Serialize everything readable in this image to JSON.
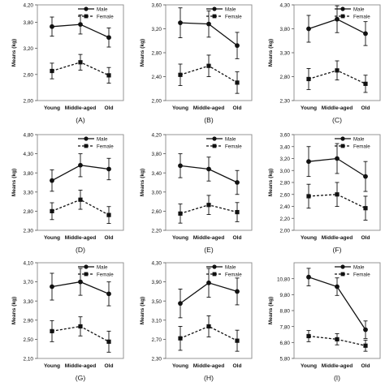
{
  "chart_data": [
    {
      "panel_label": "(A)",
      "type": "line",
      "categories": [
        "Young",
        "Middle-aged",
        "Old"
      ],
      "ylabel": "Means (kg)",
      "yticks": [
        "2,00",
        "2,60",
        "3,20",
        "3,80",
        "4,20"
      ],
      "ylim": [
        2.0,
        4.2
      ],
      "legend": [
        "Male",
        "Female"
      ],
      "series": [
        {
          "name": "Male",
          "values": [
            3.7,
            3.75,
            3.45
          ],
          "errors": [
            0.22,
            0.22,
            0.22
          ]
        },
        {
          "name": "Female",
          "values": [
            2.68,
            2.88,
            2.58
          ],
          "errors": [
            0.18,
            0.18,
            0.18
          ]
        }
      ]
    },
    {
      "panel_label": "(B)",
      "type": "line",
      "categories": [
        "Young",
        "Middle-aged",
        "Old"
      ],
      "ylabel": "Means (kg)",
      "yticks": [
        "2,00",
        "2,40",
        "2,80",
        "3,20",
        "3,60"
      ],
      "ylim": [
        2.0,
        3.6
      ],
      "legend": [
        "Male",
        "Female"
      ],
      "series": [
        {
          "name": "Male",
          "values": [
            3.3,
            3.28,
            2.92
          ],
          "errors": [
            0.25,
            0.22,
            0.22
          ]
        },
        {
          "name": "Female",
          "values": [
            2.43,
            2.58,
            2.3
          ],
          "errors": [
            0.18,
            0.18,
            0.18
          ]
        }
      ]
    },
    {
      "panel_label": "(C)",
      "type": "line",
      "categories": [
        "Young",
        "Middle-aged",
        "Old"
      ],
      "ylabel": "Means (kg)",
      "yticks": [
        "2,30",
        "2,80",
        "3,30",
        "3,80",
        "4,30"
      ],
      "ylim": [
        2.3,
        4.3
      ],
      "legend": [
        "Male",
        "Female"
      ],
      "series": [
        {
          "name": "Male",
          "values": [
            3.8,
            4.0,
            3.7
          ],
          "errors": [
            0.28,
            0.28,
            0.25
          ]
        },
        {
          "name": "Female",
          "values": [
            2.75,
            2.93,
            2.65
          ],
          "errors": [
            0.22,
            0.2,
            0.18
          ]
        }
      ]
    },
    {
      "panel_label": "(D)",
      "type": "line",
      "categories": [
        "Young",
        "Middle-aged",
        "Old"
      ],
      "ylabel": "Means (kg)",
      "yticks": [
        "2,30",
        "2,80",
        "3,30",
        "3,80",
        "4,30",
        "4,80"
      ],
      "ylim": [
        2.3,
        4.8
      ],
      "legend": [
        "Male",
        "Female"
      ],
      "series": [
        {
          "name": "Male",
          "values": [
            3.6,
            4.0,
            3.9
          ],
          "errors": [
            0.28,
            0.3,
            0.28
          ]
        },
        {
          "name": "Female",
          "values": [
            2.8,
            3.1,
            2.7
          ],
          "errors": [
            0.22,
            0.25,
            0.22
          ]
        }
      ]
    },
    {
      "panel_label": "(E)",
      "type": "line",
      "categories": [
        "Young",
        "Middle-aged",
        "Old"
      ],
      "ylabel": "Means (kg)",
      "yticks": [
        "2,20",
        "2,60",
        "3,00",
        "3,40",
        "3,80",
        "4,20"
      ],
      "ylim": [
        2.2,
        4.2
      ],
      "legend": [
        "Male",
        "Female"
      ],
      "series": [
        {
          "name": "Male",
          "values": [
            3.55,
            3.48,
            3.2
          ],
          "errors": [
            0.25,
            0.25,
            0.25
          ]
        },
        {
          "name": "Female",
          "values": [
            2.55,
            2.73,
            2.58
          ],
          "errors": [
            0.2,
            0.2,
            0.2
          ]
        }
      ]
    },
    {
      "panel_label": "(F)",
      "type": "line",
      "categories": [
        "Young",
        "Middle-aged",
        "Old"
      ],
      "ylabel": "Means (kg)",
      "yticks": [
        "2,00",
        "2,20",
        "2,40",
        "2,60",
        "2,80",
        "3,00",
        "3,20",
        "3,40",
        "3,60"
      ],
      "ylim": [
        2.0,
        3.6
      ],
      "legend": [
        "Male",
        "Female"
      ],
      "series": [
        {
          "name": "Male",
          "values": [
            3.15,
            3.2,
            2.9
          ],
          "errors": [
            0.25,
            0.25,
            0.25
          ]
        },
        {
          "name": "Female",
          "values": [
            2.57,
            2.6,
            2.37
          ],
          "errors": [
            0.2,
            0.2,
            0.2
          ]
        }
      ]
    },
    {
      "panel_label": "(G)",
      "type": "line",
      "categories": [
        "Young",
        "Middle-aged",
        "Old"
      ],
      "ylabel": "Means (kg)",
      "yticks": [
        "2,10",
        "2,50",
        "2,90",
        "3,30",
        "3,70",
        "4,10"
      ],
      "ylim": [
        2.1,
        4.1
      ],
      "legend": [
        "Male",
        "Female"
      ],
      "series": [
        {
          "name": "Male",
          "values": [
            3.6,
            3.7,
            3.45
          ],
          "errors": [
            0.28,
            0.28,
            0.25
          ]
        },
        {
          "name": "Female",
          "values": [
            2.67,
            2.77,
            2.45
          ],
          "errors": [
            0.22,
            0.2,
            0.22
          ]
        }
      ]
    },
    {
      "panel_label": "(H)",
      "type": "line",
      "categories": [
        "Young",
        "Middle-aged",
        "Old"
      ],
      "ylabel": "Means (kg)",
      "yticks": [
        "2,30",
        "2,70",
        "3,10",
        "3,50",
        "3,90",
        "4,30"
      ],
      "ylim": [
        2.3,
        4.3
      ],
      "legend": [
        "Male",
        "Female"
      ],
      "series": [
        {
          "name": "Male",
          "values": [
            3.45,
            3.88,
            3.7
          ],
          "errors": [
            0.3,
            0.3,
            0.28
          ]
        },
        {
          "name": "Female",
          "values": [
            2.72,
            2.97,
            2.67
          ],
          "errors": [
            0.25,
            0.22,
            0.22
          ]
        }
      ]
    },
    {
      "panel_label": "(I)",
      "type": "line",
      "categories": [
        "Young",
        "Middle-aged",
        "Old"
      ],
      "ylabel": "Means (kg)",
      "yticks": [
        "5,80",
        "6,80",
        "7,80",
        "8,80",
        "9,80",
        "10,80"
      ],
      "ylim": [
        5.8,
        11.8
      ],
      "legend": [
        "Male",
        "Female"
      ],
      "series": [
        {
          "name": "Male",
          "values": [
            10.9,
            10.3,
            7.6
          ],
          "errors": [
            0.55,
            0.55,
            0.55
          ]
        },
        {
          "name": "Female",
          "values": [
            7.2,
            7.0,
            6.6
          ],
          "errors": [
            0.35,
            0.35,
            0.35
          ]
        }
      ]
    }
  ]
}
